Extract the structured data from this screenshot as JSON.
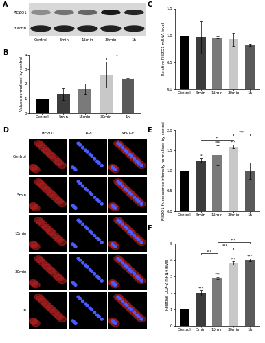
{
  "panel_labels": [
    "A",
    "B",
    "C",
    "D",
    "E",
    "F"
  ],
  "blot": {
    "rows": [
      "PIEZO1",
      "β-actin"
    ],
    "lanes": [
      "Control",
      "5min",
      "15min",
      "30min",
      "1h"
    ]
  },
  "images": {
    "columns": [
      "PIEZO1",
      "DAPI",
      "MERGE"
    ],
    "rows": [
      "Control",
      "5min",
      "15min",
      "30min",
      "1h"
    ]
  },
  "chart_data": [
    {
      "type": "bar",
      "ylabel": "Values normalised by control",
      "categories": [
        "Control",
        "5min",
        "15min",
        "30min",
        "1h"
      ],
      "values": [
        1.0,
        1.3,
        1.65,
        2.65,
        2.35
      ],
      "errors": [
        0.0,
        0.4,
        0.35,
        0.9,
        0.05
      ],
      "colors": [
        "#000000",
        "#3c3c3c",
        "#7a7a7a",
        "#c8c8c8",
        "#5a5a5a"
      ],
      "ylim": [
        0,
        4
      ],
      "yticks": [
        0,
        1,
        2,
        3,
        4
      ],
      "significance": [
        null,
        null,
        null,
        null,
        null
      ],
      "brackets": [
        {
          "from": "30min",
          "to": "1h",
          "label": "*"
        }
      ]
    },
    {
      "type": "bar",
      "ylabel": "Relative PIEZO1 mRNA level",
      "categories": [
        "Control",
        "5min",
        "15min",
        "30min",
        "1h"
      ],
      "values": [
        1.0,
        0.97,
        0.96,
        0.93,
        0.82
      ],
      "errors": [
        0.0,
        0.3,
        0.02,
        0.12,
        0.02
      ],
      "colors": [
        "#000000",
        "#3c3c3c",
        "#7a7a7a",
        "#c8c8c8",
        "#5a5a5a"
      ],
      "ylim": [
        0,
        1.5
      ],
      "yticks": [
        {
          "value": 0,
          "label": "0.0"
        },
        {
          "value": 0.5,
          "label": "0.5"
        },
        {
          "value": 1.0,
          "label": "1.0"
        },
        {
          "value": 1.5,
          "label": "1.5"
        }
      ],
      "significance": [
        null,
        null,
        null,
        null,
        null
      ],
      "brackets": []
    },
    {
      "type": "bar",
      "ylabel": "PIEZO1 fluorescence intensity normalised by control",
      "categories": [
        "Control",
        "5min",
        "15min",
        "30min",
        "1h"
      ],
      "values": [
        1.0,
        1.25,
        1.38,
        1.6,
        1.0
      ],
      "errors": [
        0.0,
        0.05,
        0.25,
        0.05,
        0.2
      ],
      "colors": [
        "#000000",
        "#3c3c3c",
        "#7a7a7a",
        "#c8c8c8",
        "#5a5a5a"
      ],
      "ylim": [
        0,
        2
      ],
      "yticks": [
        {
          "value": 0,
          "label": "0.0"
        },
        {
          "value": 0.5,
          "label": "0.5"
        },
        {
          "value": 1.0,
          "label": "1.0"
        },
        {
          "value": 1.5,
          "label": "1.5"
        },
        {
          "value": 2.0,
          "label": "2.0"
        }
      ],
      "significance": [
        null,
        "*",
        "***",
        "***",
        null
      ],
      "brackets": [
        {
          "from": "5min",
          "to": "30min",
          "label": "**"
        },
        {
          "from": "30min",
          "to": "1h",
          "label": "***"
        }
      ]
    },
    {
      "type": "bar",
      "ylabel": "Relative COX-2 mRNA level",
      "categories": [
        "Control",
        "5min",
        "15min",
        "30min",
        "1h"
      ],
      "values": [
        1.0,
        2.0,
        2.9,
        3.8,
        4.0
      ],
      "errors": [
        0.0,
        0.15,
        0.05,
        0.1,
        0.1
      ],
      "colors": [
        "#000000",
        "#3c3c3c",
        "#7a7a7a",
        "#c8c8c8",
        "#5a5a5a"
      ],
      "ylim": [
        0,
        5
      ],
      "yticks": [
        0,
        1,
        2,
        3,
        4,
        5
      ],
      "significance": [
        null,
        "***",
        "***",
        "***",
        "***"
      ],
      "brackets": [
        {
          "from": "5min",
          "to": "15min",
          "label": "***"
        },
        {
          "from": "15min",
          "to": "30min",
          "label": "***"
        },
        {
          "from": "15min",
          "to": "1h",
          "label": "***"
        }
      ]
    }
  ]
}
